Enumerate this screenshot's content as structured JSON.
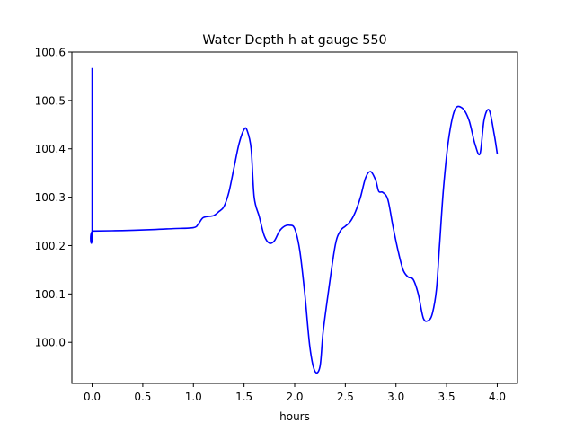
{
  "chart_data": {
    "type": "line",
    "title": "Water Depth h at gauge 550",
    "xlabel": "hours",
    "ylabel": "",
    "xlim": [
      -0.2,
      4.2
    ],
    "ylim": [
      99.915,
      100.6
    ],
    "xticks": [
      0.0,
      0.5,
      1.0,
      1.5,
      2.0,
      2.5,
      3.0,
      3.5,
      4.0
    ],
    "xtick_labels": [
      "0.0",
      "0.5",
      "1.0",
      "1.5",
      "2.0",
      "2.5",
      "3.0",
      "3.5",
      "4.0"
    ],
    "yticks": [
      100.0,
      100.1,
      100.2,
      100.3,
      100.4,
      100.5,
      100.6
    ],
    "ytick_labels": [
      "100.0",
      "100.1",
      "100.2",
      "100.3",
      "100.4",
      "100.5",
      "100.6"
    ],
    "grid": false,
    "line_color": "#0000ff",
    "series": [
      {
        "x": [
          0.0,
          0.0,
          0.01,
          0.3,
          0.6,
          0.8,
          1.0,
          1.05,
          1.1,
          1.2,
          1.25,
          1.3,
          1.35,
          1.4,
          1.45,
          1.5,
          1.53,
          1.57,
          1.6,
          1.65,
          1.7,
          1.75,
          1.8,
          1.85,
          1.9,
          1.95,
          2.0,
          2.05,
          2.1,
          2.15,
          2.2,
          2.25,
          2.28,
          2.33,
          2.4,
          2.45,
          2.5,
          2.55,
          2.6,
          2.65,
          2.7,
          2.75,
          2.8,
          2.83,
          2.87,
          2.92,
          2.97,
          3.02,
          3.07,
          3.12,
          3.17,
          3.22,
          3.27,
          3.32,
          3.36,
          3.4,
          3.43,
          3.47,
          3.52,
          3.58,
          3.65,
          3.72,
          3.78,
          3.83,
          3.87,
          3.92,
          3.97,
          4.0
        ],
        "y": [
          100.567,
          100.23,
          100.23,
          100.231,
          100.233,
          100.235,
          100.237,
          100.245,
          100.258,
          100.262,
          100.27,
          100.28,
          100.31,
          100.36,
          100.41,
          100.44,
          100.438,
          100.4,
          100.3,
          100.26,
          100.22,
          100.205,
          100.21,
          100.23,
          100.24,
          100.242,
          100.235,
          100.19,
          100.1,
          99.99,
          99.94,
          99.95,
          100.02,
          100.1,
          100.2,
          100.23,
          100.24,
          100.25,
          100.27,
          100.3,
          100.34,
          100.353,
          100.335,
          100.312,
          100.31,
          100.295,
          100.24,
          100.19,
          100.15,
          100.135,
          100.13,
          100.1,
          100.05,
          100.045,
          100.06,
          100.11,
          100.2,
          100.32,
          100.42,
          100.48,
          100.485,
          100.46,
          100.41,
          100.39,
          100.46,
          100.48,
          100.43,
          100.39
        ]
      }
    ]
  }
}
